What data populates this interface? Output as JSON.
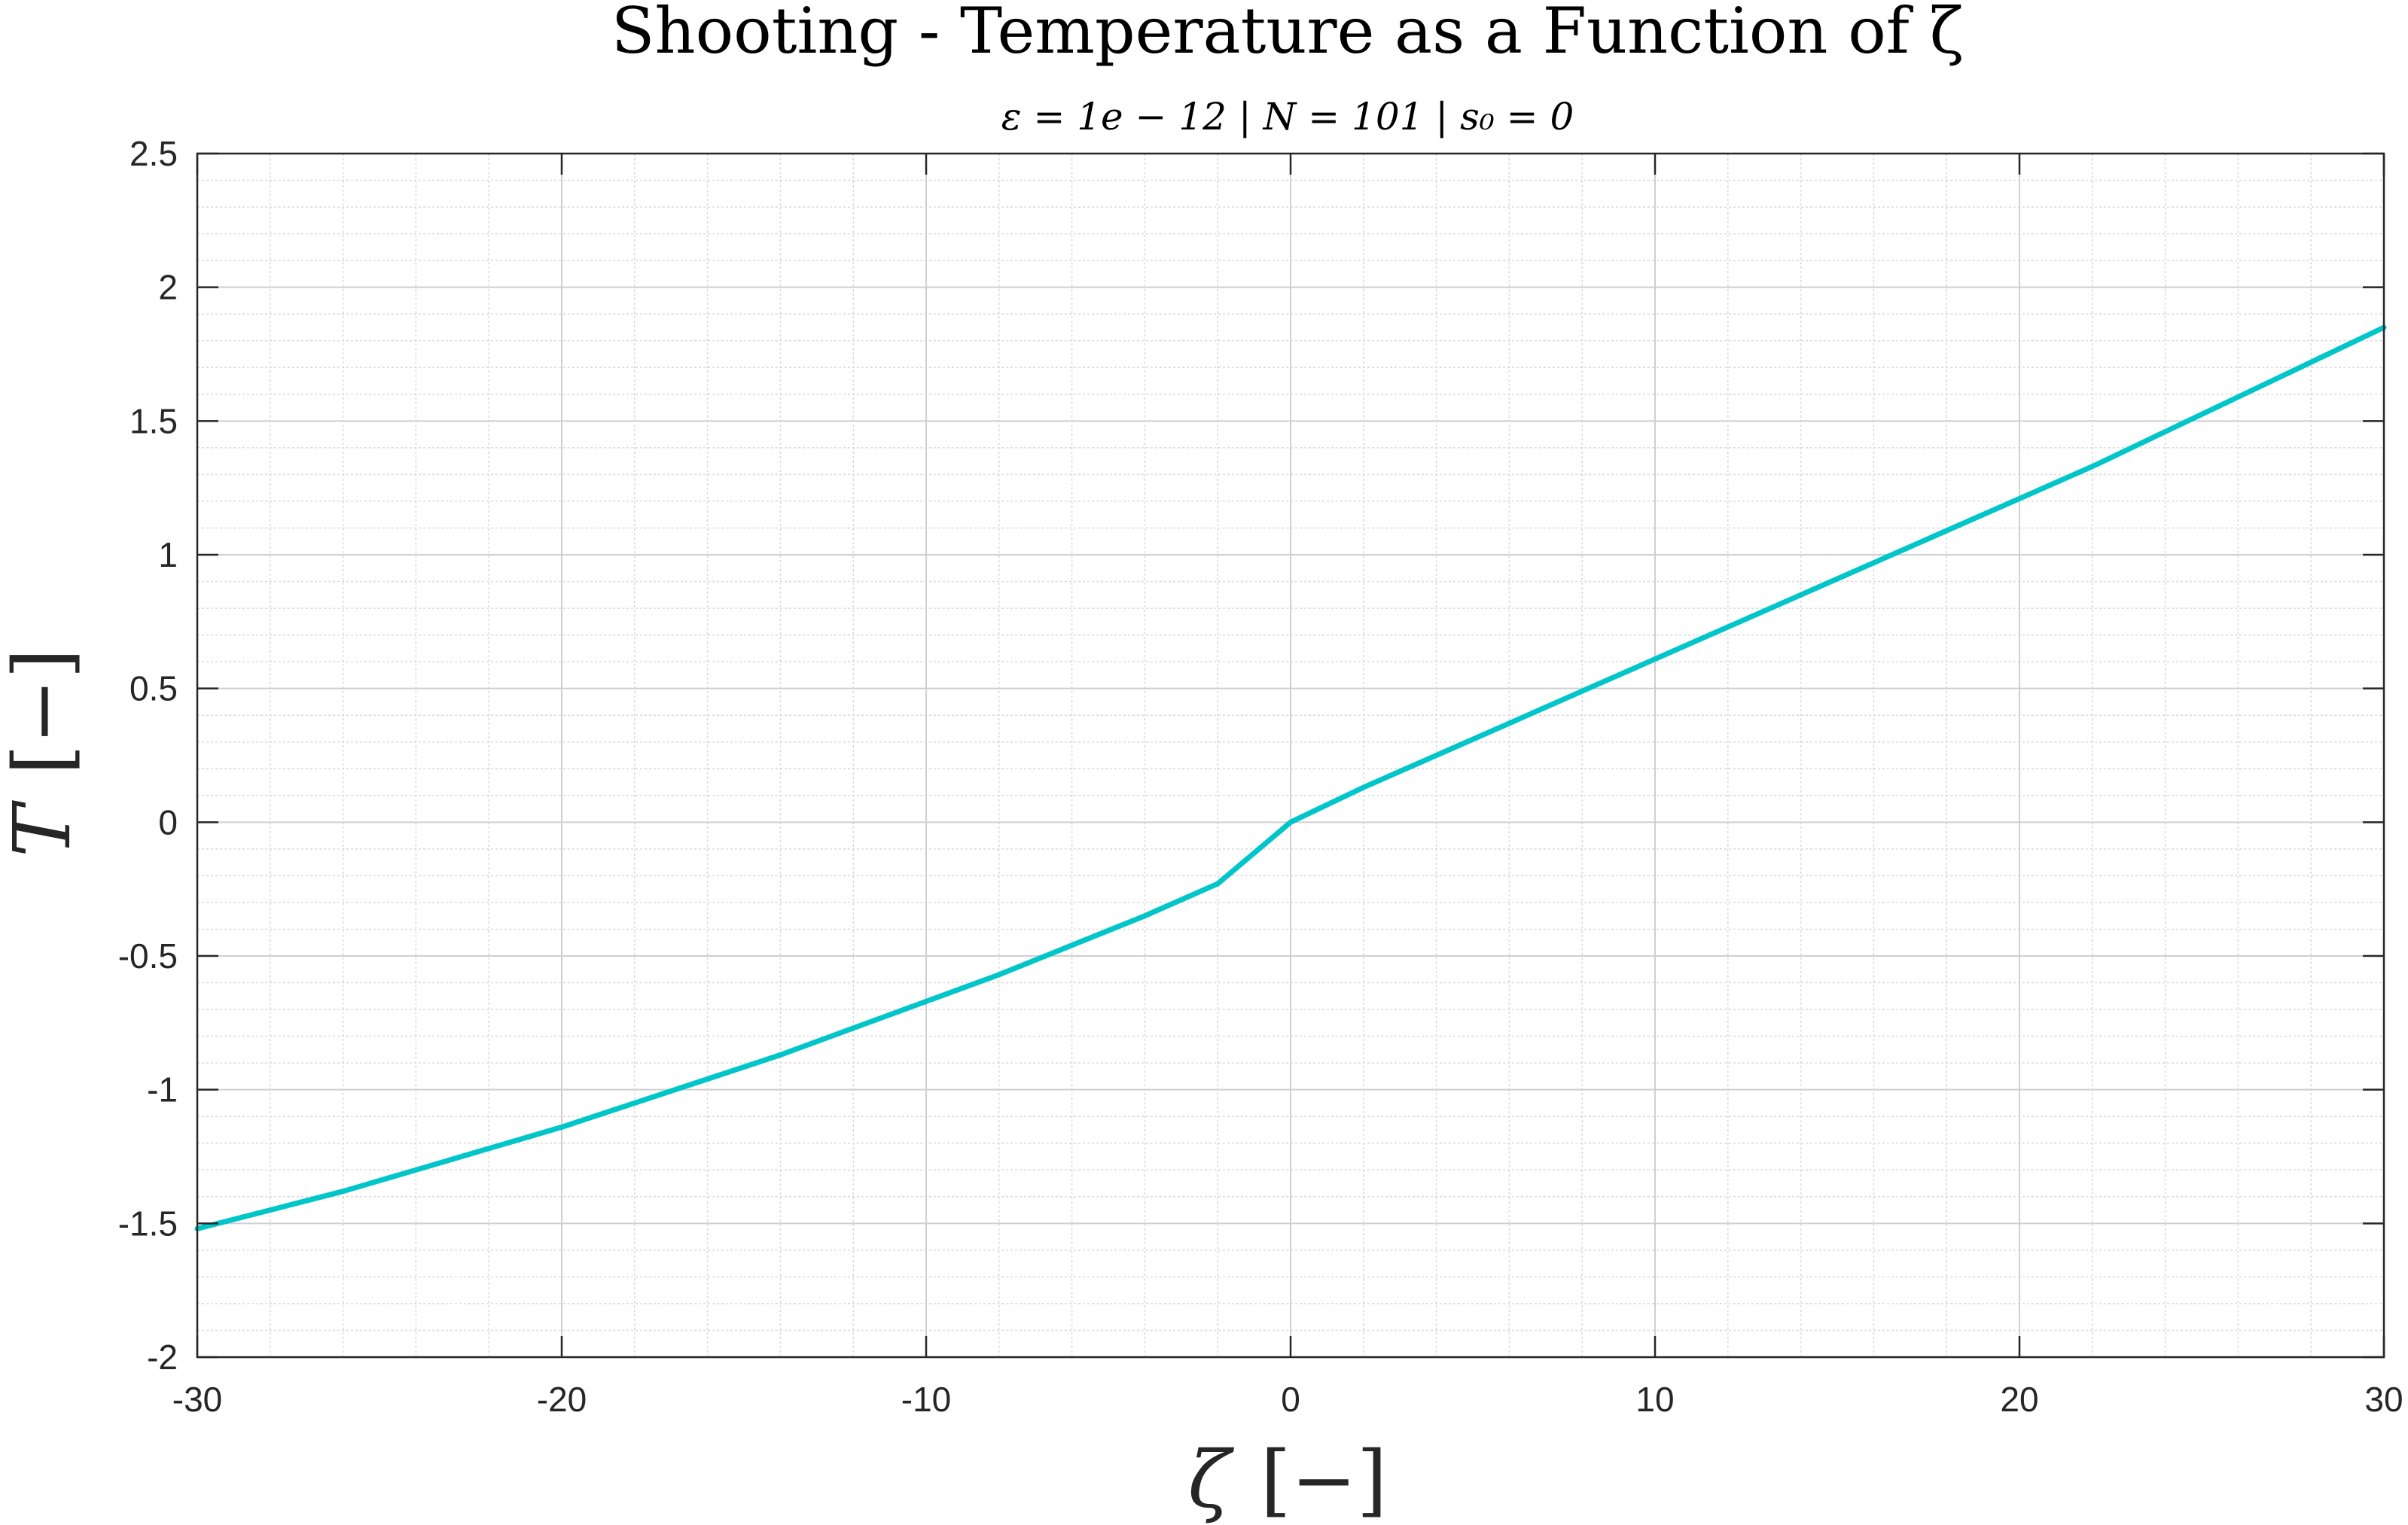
{
  "chart_data": {
    "type": "line",
    "title": "Shooting - Temperature as a Function of ζ",
    "subtitle": "ε = 1e − 12 | N = 101 | s₀ = 0",
    "xlabel": "ζ",
    "xlabel_unit": "[−]",
    "ylabel": "T",
    "ylabel_unit": "[−]",
    "xlim": [
      -30,
      30
    ],
    "ylim": [
      -2,
      2.5
    ],
    "xticks": [
      -30,
      -20,
      -10,
      0,
      10,
      20,
      30
    ],
    "xtick_labels": [
      "-30",
      "-20",
      "-10",
      "0",
      "10",
      "20",
      "30"
    ],
    "yticks": [
      2.5,
      2,
      1.5,
      1,
      0.5,
      0,
      -0.5,
      -1,
      -1.5,
      -2
    ],
    "ytick_labels": [
      "2.5",
      "2",
      "1.5",
      "1",
      "0.5",
      "0",
      "-0.5",
      "-1",
      "-1.5",
      "-2"
    ],
    "grid": true,
    "minor_grid": true,
    "series": [
      {
        "color": "#00C5C9",
        "x": [
          -30,
          -28,
          -26,
          -24,
          -22,
          -20,
          -18,
          -16,
          -14,
          -12,
          -10,
          -8,
          -6,
          -4,
          -2,
          0,
          2,
          4,
          6,
          8,
          10,
          12,
          14,
          16,
          18,
          20,
          22,
          24,
          26,
          28,
          30
        ],
        "y": [
          -1.52,
          -1.45,
          -1.38,
          -1.3,
          -1.22,
          -1.14,
          -1.05,
          -0.96,
          -0.87,
          -0.77,
          -0.67,
          -0.57,
          -0.46,
          -0.35,
          -0.23,
          0.0,
          0.13,
          0.25,
          0.37,
          0.49,
          0.61,
          0.73,
          0.85,
          0.97,
          1.09,
          1.21,
          1.33,
          1.46,
          1.59,
          1.72,
          1.85
        ]
      }
    ]
  }
}
